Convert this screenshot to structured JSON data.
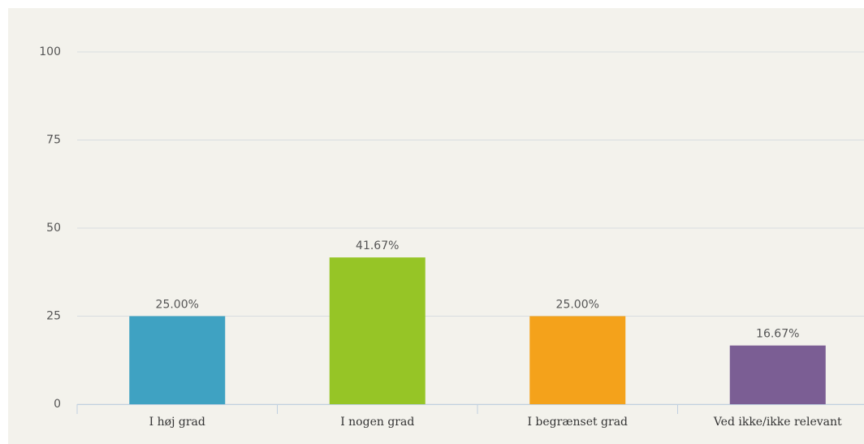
{
  "chart_data": {
    "type": "bar",
    "categories": [
      "I høj grad",
      "I nogen grad",
      "I begrænset grad",
      "Ved ikke/ikke relevant"
    ],
    "values": [
      25,
      41.67,
      25,
      16.67
    ],
    "value_labels": [
      "25.00%",
      "41.67%",
      "25.00%",
      "16.67%"
    ],
    "colors": [
      "#3fa2c2",
      "#96c526",
      "#f4a21b",
      "#7b5e94"
    ],
    "ylim": [
      0,
      100
    ],
    "yticks": [
      0,
      25,
      50,
      75,
      100
    ],
    "grid": true
  }
}
